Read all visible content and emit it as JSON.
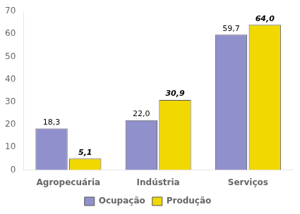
{
  "chart_data": {
    "type": "bar",
    "categories": [
      "Agropecuária",
      "Indústria",
      "Serviços"
    ],
    "series": [
      {
        "name": "Ocupação",
        "color": "#9090cc",
        "values": [
          18.3,
          22.0,
          59.7
        ],
        "value_labels": [
          "18,3",
          "22,0",
          "59,7"
        ]
      },
      {
        "name": "Produção",
        "color": "#f0d800",
        "values": [
          5.1,
          30.9,
          64.0
        ],
        "value_labels": [
          "5,1",
          "30,9",
          "64,0"
        ]
      }
    ],
    "ylim": [
      0,
      70
    ],
    "yticks": [
      0,
      10,
      20,
      30,
      40,
      50,
      60,
      70
    ],
    "grid": false,
    "legend": "bottom",
    "data_labels": true
  }
}
